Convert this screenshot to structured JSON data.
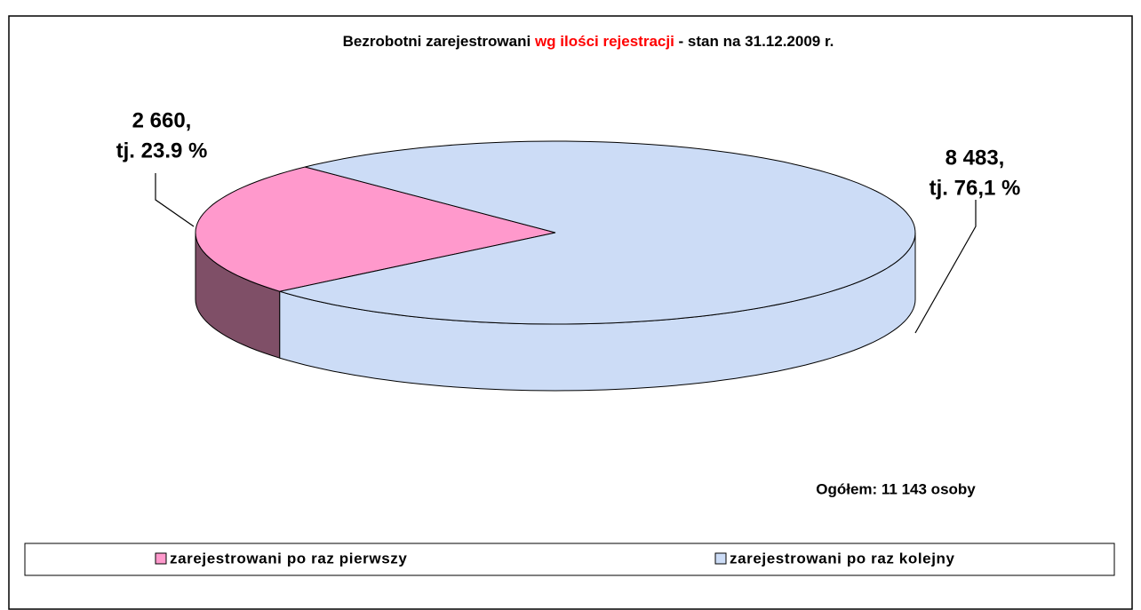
{
  "chart_data": {
    "type": "pie3d",
    "title_parts": [
      {
        "text": "Bezrobotni zarejestrowani ",
        "color": "#000000"
      },
      {
        "text": "wg ilości rejestracji",
        "color": "#ff0000"
      },
      {
        "text": " - stan na 31.12.2009 r.",
        "color": "#000000"
      }
    ],
    "categories": [
      "zarejestrowani po raz pierwszy",
      "zarejestrowani po raz kolejny"
    ],
    "values": [
      2660,
      8483
    ],
    "value_labels": [
      "2 660,",
      "8 483,"
    ],
    "percents": [
      23.9,
      76.1
    ],
    "percent_labels": [
      "tj. 23.9 %",
      "tj. 76,1 %"
    ],
    "colors": [
      "#ff99cc",
      "#ccdcf6"
    ],
    "side_colors": [
      "#7f4f67",
      "#ccdcf6"
    ],
    "annotation": "Ogółem: 11 143 osoby",
    "legend": "bottom"
  }
}
